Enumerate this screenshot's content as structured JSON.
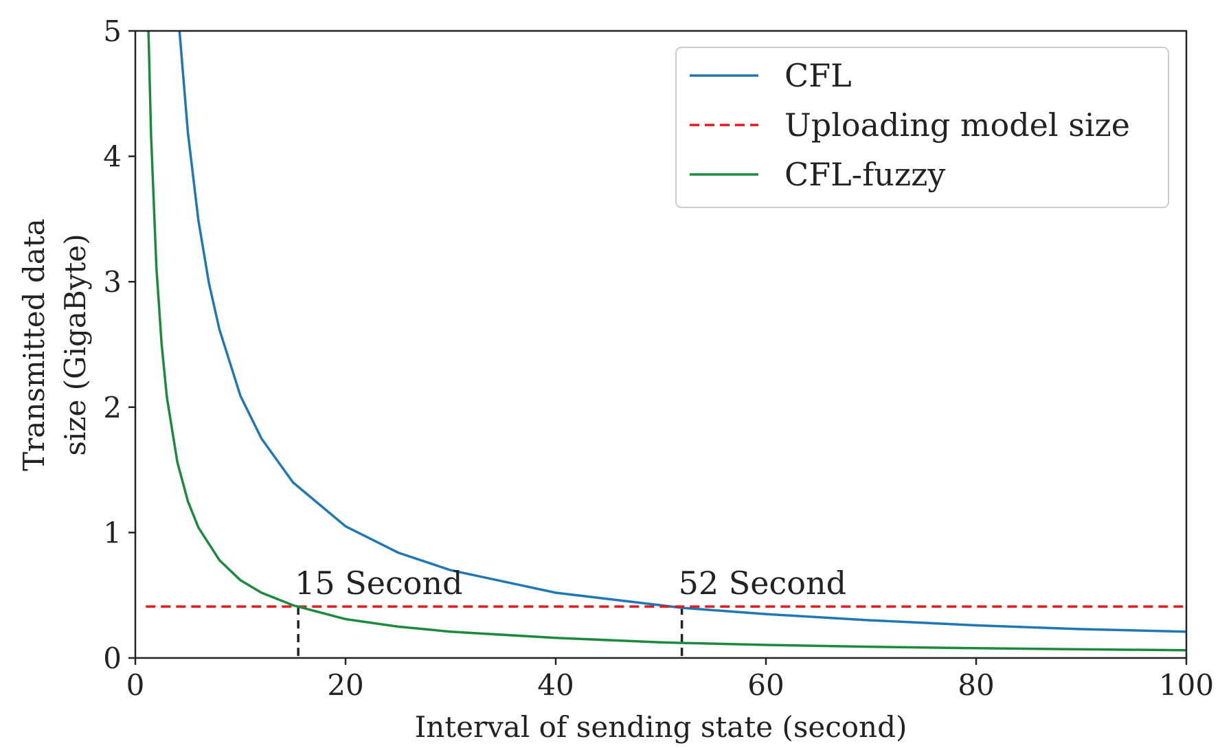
{
  "chart_data": {
    "type": "line",
    "xlabel": "Interval of sending state (second)",
    "ylabel_lines": [
      "Transmitted data",
      "size (GigaByte)"
    ],
    "xlim": [
      0,
      100
    ],
    "ylim": [
      0,
      5
    ],
    "xticks": [
      0,
      20,
      40,
      60,
      80,
      100
    ],
    "yticks": [
      0,
      1,
      2,
      3,
      4,
      5
    ],
    "grid": false,
    "legend_position": "top-right",
    "series": [
      {
        "name": "CFL",
        "color": "#1f77b4",
        "style": "solid",
        "x": [
          4.2,
          5,
          6,
          7,
          8,
          10,
          12,
          15,
          20,
          25,
          30,
          40,
          50,
          52,
          60,
          70,
          80,
          90,
          100
        ],
        "y": [
          5.0,
          4.19,
          3.49,
          2.99,
          2.62,
          2.09,
          1.75,
          1.4,
          1.05,
          0.84,
          0.7,
          0.52,
          0.42,
          0.4,
          0.35,
          0.3,
          0.26,
          0.23,
          0.21
        ]
      },
      {
        "name": "Uploading model size",
        "color": "#e41a1c",
        "style": "dashed",
        "x": [
          1,
          100
        ],
        "y": [
          0.41,
          0.41
        ]
      },
      {
        "name": "CFL-fuzzy",
        "color": "#1b8a3c",
        "style": "solid",
        "x": [
          1.25,
          1.5,
          2,
          2.5,
          3,
          4,
          5,
          6,
          8,
          10,
          12,
          15,
          20,
          25,
          30,
          40,
          50,
          52,
          60,
          70,
          80,
          90,
          100
        ],
        "y": [
          5.0,
          4.17,
          3.12,
          2.5,
          2.08,
          1.56,
          1.25,
          1.04,
          0.78,
          0.62,
          0.52,
          0.42,
          0.31,
          0.25,
          0.21,
          0.16,
          0.125,
          0.12,
          0.104,
          0.089,
          0.078,
          0.069,
          0.062
        ]
      }
    ],
    "annotations": [
      {
        "text": "15 Second",
        "x": 15.5,
        "y": 0.41
      },
      {
        "text": "52 Second",
        "x": 52,
        "y": 0.41
      }
    ]
  }
}
